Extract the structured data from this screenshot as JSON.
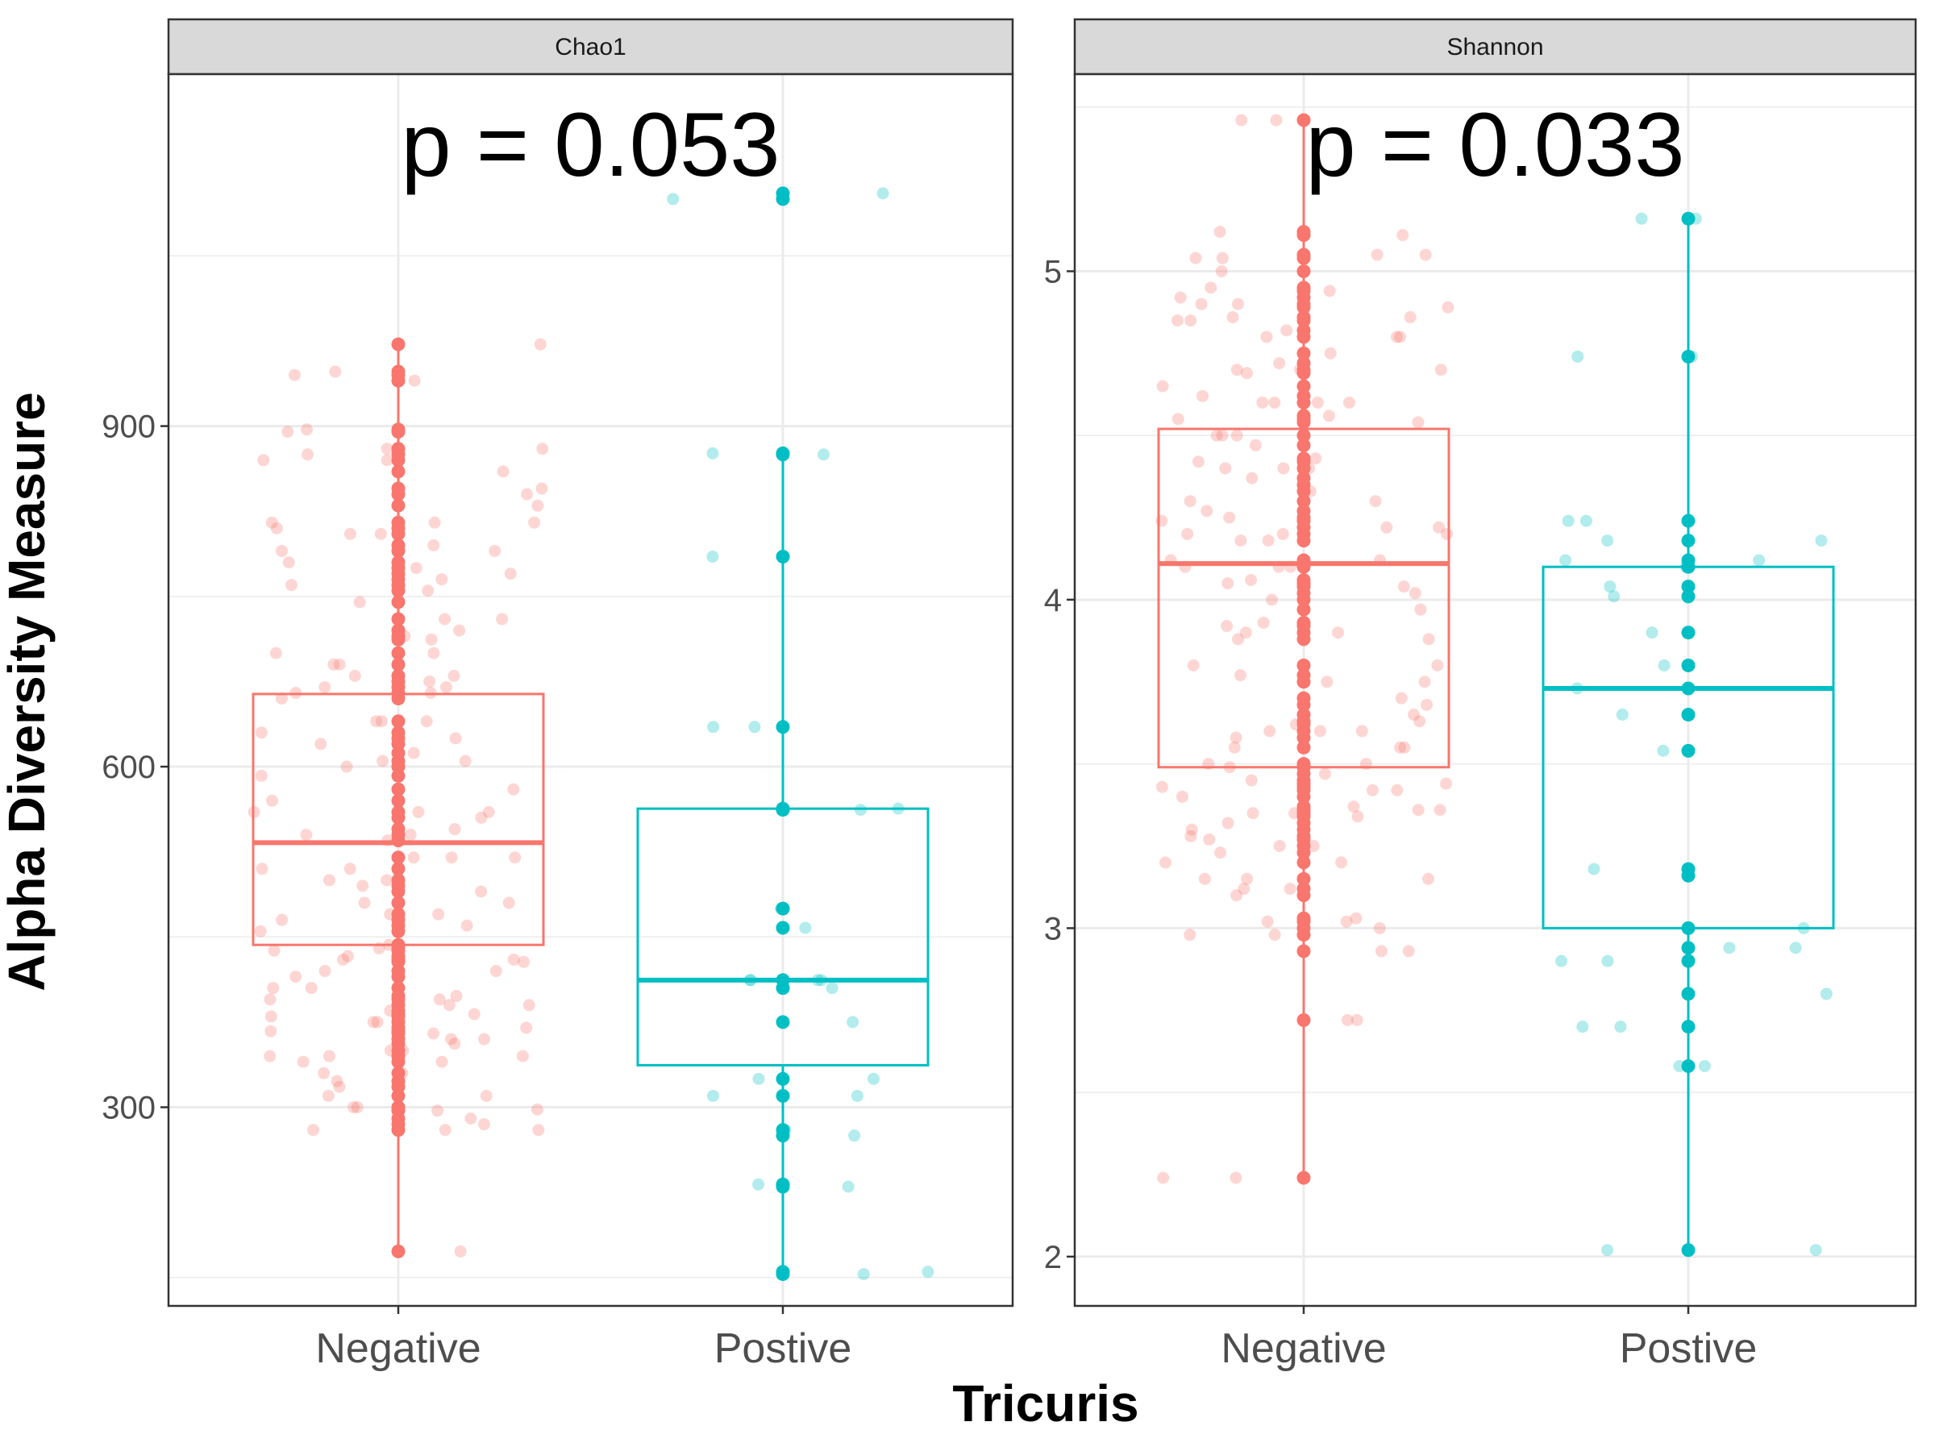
{
  "figure": {
    "ylabel": "Alpha Diversity Measure",
    "xlabel": "Tricuris"
  },
  "colors": {
    "negative": "#F8766D",
    "positive": "#00BFC4",
    "strip_bg": "#D9D9D9",
    "grid": "#EBEBEB",
    "panel_border": "#333333",
    "tick_text": "#4D4D4D"
  },
  "chart_data": [
    {
      "type": "box",
      "panel": "Chao1",
      "annotation": "p = 0.053",
      "categories": [
        "Negative",
        "Postive"
      ],
      "ylim": [
        125,
        1210
      ],
      "yticks": [
        300,
        600,
        900
      ],
      "grid": true,
      "boxes": [
        {
          "category": "Negative",
          "min": 173,
          "q1": 443,
          "median": 533,
          "q3": 664,
          "max": 972
        },
        {
          "category": "Postive",
          "min": 155,
          "q1": 337,
          "median": 412,
          "q3": 563,
          "max": 876
        }
      ],
      "points": [
        {
          "category": "Negative",
          "values": [
            173,
            280,
            290,
            300,
            310,
            318,
            330,
            340,
            345,
            350,
            356,
            360,
            367,
            375,
            382,
            390,
            398,
            405,
            420,
            428,
            433,
            438,
            443,
            460,
            480,
            500,
            520,
            540,
            560,
            580,
            605,
            640,
            660,
            670,
            680,
            690,
            700,
            715,
            730,
            745,
            760,
            770,
            780,
            795,
            805,
            815,
            830,
            845,
            860,
            870,
            880,
            897,
            945,
            972,
            948,
            815,
            805,
            895,
            870,
            755,
            775,
            690,
            675,
            665,
            630,
            612,
            592,
            555,
            545,
            520,
            495,
            470,
            465,
            430,
            395,
            385,
            380,
            365,
            360,
            340,
            323,
            298,
            280,
            940,
            880,
            810,
            815,
            765,
            790,
            720,
            700,
            670,
            640,
            620,
            605,
            560,
            540,
            510,
            490,
            455,
            420,
            395,
            375,
            345,
            300,
            280,
            600,
            640,
            680,
            712,
            350,
            500,
            535,
            560,
            625,
            665,
            520,
            480,
            430,
            405,
            390,
            330,
            310,
            285,
            875,
            840,
            790,
            730,
            570,
            510,
            470,
            440,
            415,
            370,
            345,
            297
          ]
        },
        {
          "category": "Postive",
          "values": [
            155,
            230,
            275,
            310,
            325,
            412,
            563,
            635,
            785,
            876,
            1105,
            1100,
            875,
            635,
            562,
            475,
            458,
            412,
            405,
            412,
            375,
            325,
            310,
            280,
            232,
            153,
            412
          ]
        }
      ]
    },
    {
      "type": "box",
      "panel": "Shannon",
      "annotation": "p = 0.033",
      "categories": [
        "Negative",
        "Postive"
      ],
      "ylim": [
        1.85,
        5.6
      ],
      "yticks": [
        2,
        3,
        4,
        5
      ],
      "grid": true,
      "boxes": [
        {
          "category": "Negative",
          "min": 2.24,
          "q1": 3.49,
          "median": 4.11,
          "q3": 4.52,
          "max": 5.46
        },
        {
          "category": "Postive",
          "min": 2.02,
          "q1": 3.0,
          "median": 3.73,
          "q3": 4.1,
          "max": 5.16
        }
      ],
      "points": [
        {
          "category": "Negative",
          "values": [
            2.24,
            2.72,
            2.93,
            2.98,
            3.02,
            3.1,
            3.15,
            3.2,
            3.25,
            3.28,
            3.32,
            3.36,
            3.4,
            3.44,
            3.5,
            3.55,
            3.6,
            3.65,
            3.7,
            3.8,
            3.9,
            4.0,
            4.05,
            4.1,
            4.2,
            4.3,
            4.4,
            4.5,
            4.55,
            4.6,
            4.65,
            4.7,
            4.75,
            4.8,
            4.85,
            4.9,
            4.95,
            5.0,
            5.05,
            5.12,
            5.46,
            5.04,
            5.05,
            4.92,
            4.94,
            4.8,
            4.82,
            4.7,
            4.69,
            4.56,
            4.54,
            4.5,
            4.47,
            4.37,
            4.25,
            4.2,
            4.18,
            4.12,
            4.1,
            4.02,
            3.77,
            3.6,
            3.58,
            3.55,
            3.49,
            3.43,
            3.37,
            3.36,
            3.34,
            3.3,
            3.2,
            3.03,
            2.93,
            2.24,
            2.72,
            3.45,
            3.6,
            3.8,
            4.04,
            4.2,
            4.4,
            4.6,
            4.72,
            4.86,
            5.11,
            5.46,
            4.33,
            4.12,
            3.92,
            3.75,
            3.5,
            3.35,
            3.25,
            3.15,
            3.02,
            2.98,
            3.12,
            3.42,
            3.63,
            3.88,
            3.97,
            4.22,
            4.43,
            4.62,
            4.8,
            5.04,
            4.9,
            4.86,
            4.7,
            4.6,
            4.5,
            4.42,
            4.35,
            4.3,
            4.24,
            4.22,
            4.18,
            4.1,
            3.9,
            3.88,
            3.75,
            3.62,
            3.55,
            3.47,
            3.42,
            3.27,
            3.23,
            3.15,
            3.0,
            4.89,
            4.85,
            4.6,
            4.4,
            4.27,
            4.06,
            3.93,
            3.68,
            3.35,
            3.12
          ]
        },
        {
          "category": "Postive",
          "values": [
            2.02,
            2.58,
            2.7,
            2.8,
            2.9,
            2.94,
            3.0,
            3.73,
            4.1,
            4.12,
            4.18,
            4.24,
            4.74,
            5.16,
            5.16,
            4.74,
            4.24,
            4.18,
            4.12,
            4.04,
            4.01,
            3.9,
            3.8,
            3.65,
            3.54,
            3.18,
            3.16,
            2.94,
            2.9,
            2.7,
            2.58,
            2.02
          ]
        }
      ]
    }
  ]
}
